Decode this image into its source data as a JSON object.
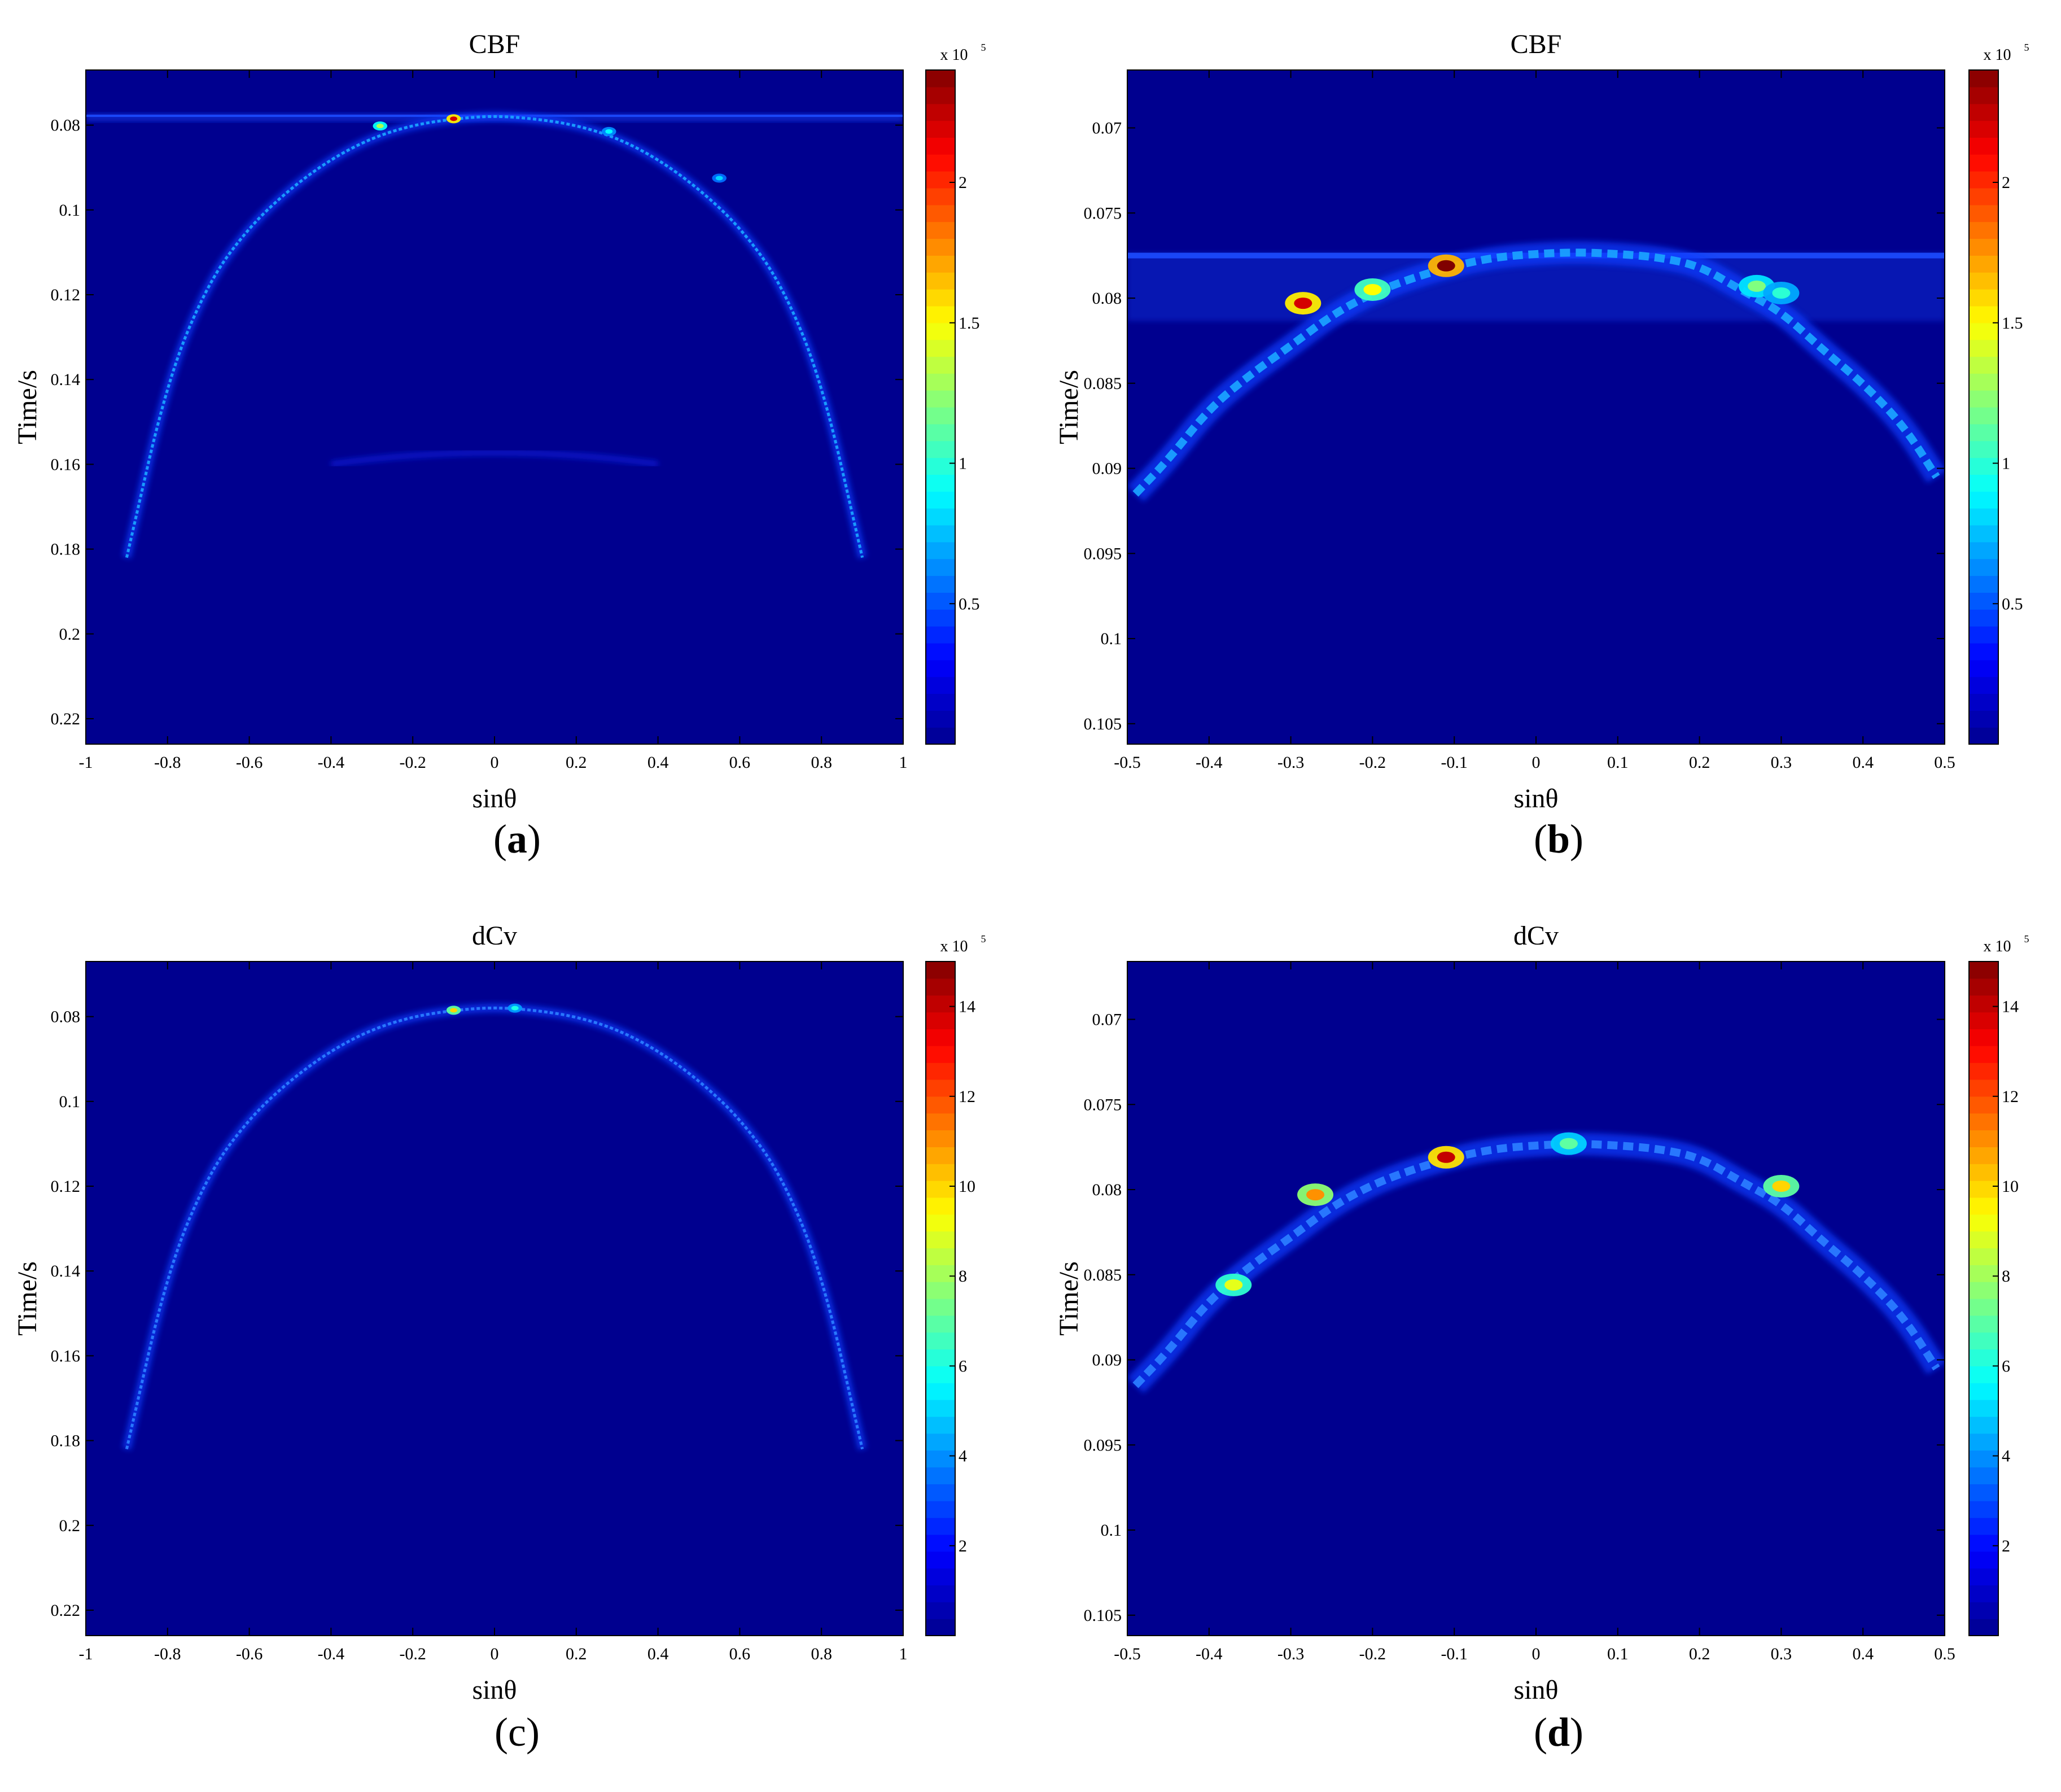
{
  "chart_data": [
    {
      "type": "heatmap",
      "panel_label": "(a)",
      "title": "CBF",
      "xlabel": "sinθ",
      "ylabel": "Time/s",
      "xlim": [
        -1,
        1
      ],
      "ylim": [
        0.067,
        0.226
      ],
      "y_reversed": true,
      "xticks": [
        -1,
        -0.8,
        -0.6,
        -0.4,
        -0.2,
        0,
        0.2,
        0.4,
        0.6,
        0.8,
        1
      ],
      "xtick_labels": [
        "-1",
        "-0.8",
        "-0.6",
        "-0.4",
        "-0.2",
        "0",
        "0.2",
        "0.4",
        "0.6",
        "0.8",
        "1"
      ],
      "yticks": [
        0.08,
        0.1,
        0.12,
        0.14,
        0.16,
        0.18,
        0.2,
        0.22
      ],
      "ytick_labels": [
        "0.08",
        "0.1",
        "0.12",
        "0.14",
        "0.16",
        "0.18",
        "0.2",
        "0.22"
      ],
      "colorbar": {
        "multiplier": "x 10",
        "exponent": "5",
        "vmax": 2.4,
        "ticks": [
          0.5,
          1,
          1.5,
          2
        ],
        "tick_labels": [
          "0.5",
          "1",
          "1.5",
          "2"
        ]
      },
      "ridge": {
        "x": [
          -0.9,
          -0.8,
          -0.7,
          -0.6,
          -0.5,
          -0.4,
          -0.3,
          -0.2,
          -0.1,
          0,
          0.1,
          0.2,
          0.3,
          0.4,
          0.5,
          0.6,
          0.7,
          0.8,
          0.9
        ],
        "y": [
          0.182,
          0.14,
          0.117,
          0.104,
          0.095,
          0.088,
          0.083,
          0.08,
          0.0785,
          0.0778,
          0.0785,
          0.08,
          0.083,
          0.088,
          0.095,
          0.104,
          0.117,
          0.14,
          0.182
        ]
      },
      "peaks": [
        {
          "x": -0.28,
          "y": 0.0802,
          "value": 1.3
        },
        {
          "x": -0.1,
          "y": 0.0785,
          "value": 2.2
        },
        {
          "x": 0.28,
          "y": 0.0815,
          "value": 0.9
        },
        {
          "x": 0.55,
          "y": 0.0925,
          "value": 0.8
        }
      ],
      "horizontal_band_time": 0.0778,
      "secondary_arc": {
        "x_range": [
          -0.4,
          0.4
        ],
        "apex_time": 0.157
      }
    },
    {
      "type": "heatmap",
      "panel_label": "(b)",
      "title": "CBF",
      "xlabel": "sinθ",
      "ylabel": "Time/s",
      "xlim": [
        -0.5,
        0.5
      ],
      "ylim": [
        0.0666,
        0.1062
      ],
      "y_reversed": true,
      "xticks": [
        -0.5,
        -0.4,
        -0.3,
        -0.2,
        -0.1,
        0,
        0.1,
        0.2,
        0.3,
        0.4,
        0.5
      ],
      "xtick_labels": [
        "-0.5",
        "-0.4",
        "-0.3",
        "-0.2",
        "-0.1",
        "0",
        "0.1",
        "0.2",
        "0.3",
        "0.4",
        "0.5"
      ],
      "yticks": [
        0.07,
        0.075,
        0.08,
        0.085,
        0.09,
        0.095,
        0.1,
        0.105
      ],
      "ytick_labels": [
        "0.07",
        "0.075",
        "0.08",
        "0.085",
        "0.09",
        "0.095",
        "0.1",
        "0.105"
      ],
      "colorbar": {
        "multiplier": "x 10",
        "exponent": "5",
        "vmax": 2.4,
        "ticks": [
          0.5,
          1,
          1.5,
          2
        ],
        "tick_labels": [
          "0.5",
          "1",
          "1.5",
          "2"
        ]
      },
      "ridge": {
        "x": [
          -0.49,
          -0.45,
          -0.4,
          -0.35,
          -0.3,
          -0.25,
          -0.2,
          -0.15,
          -0.1,
          -0.05,
          0,
          0.05,
          0.1,
          0.15,
          0.2,
          0.25,
          0.3,
          0.35,
          0.4,
          0.45,
          0.49
        ],
        "y": [
          0.0915,
          0.0895,
          0.0865,
          0.0845,
          0.0828,
          0.081,
          0.0797,
          0.0788,
          0.0781,
          0.0776,
          0.0774,
          0.0773,
          0.0774,
          0.0776,
          0.0781,
          0.0795,
          0.0808,
          0.083,
          0.085,
          0.0875,
          0.0905
        ]
      },
      "peaks": [
        {
          "x": -0.285,
          "y": 0.0803,
          "value": 2.2
        },
        {
          "x": -0.11,
          "y": 0.0781,
          "value": 2.4
        },
        {
          "x": -0.2,
          "y": 0.0795,
          "value": 1.5
        },
        {
          "x": 0.27,
          "y": 0.0793,
          "value": 1.2
        },
        {
          "x": 0.3,
          "y": 0.0797,
          "value": 1.0
        }
      ],
      "horizontal_band_time": 0.0775
    },
    {
      "type": "heatmap",
      "panel_label": "(c)",
      "title": "dCv",
      "xlabel": "sinθ",
      "ylabel": "Time/s",
      "xlim": [
        -1,
        1
      ],
      "ylim": [
        0.067,
        0.226
      ],
      "y_reversed": true,
      "xticks": [
        -1,
        -0.8,
        -0.6,
        -0.4,
        -0.2,
        0,
        0.2,
        0.4,
        0.6,
        0.8,
        1
      ],
      "xtick_labels": [
        "-1",
        "-0.8",
        "-0.6",
        "-0.4",
        "-0.2",
        "0",
        "0.2",
        "0.4",
        "0.6",
        "0.8",
        "1"
      ],
      "yticks": [
        0.08,
        0.1,
        0.12,
        0.14,
        0.16,
        0.18,
        0.2,
        0.22
      ],
      "ytick_labels": [
        "0.08",
        "0.1",
        "0.12",
        "0.14",
        "0.16",
        "0.18",
        "0.2",
        "0.22"
      ],
      "colorbar": {
        "multiplier": "x 10",
        "exponent": "5",
        "vmax": 15,
        "ticks": [
          2,
          4,
          6,
          8,
          10,
          12,
          14
        ],
        "tick_labels": [
          "2",
          "4",
          "6",
          "8",
          "10",
          "12",
          "14"
        ]
      },
      "ridge": {
        "x": [
          -0.9,
          -0.8,
          -0.7,
          -0.6,
          -0.5,
          -0.4,
          -0.3,
          -0.2,
          -0.1,
          0,
          0.1,
          0.2,
          0.3,
          0.4,
          0.5,
          0.6,
          0.7,
          0.8,
          0.9
        ],
        "y": [
          0.182,
          0.14,
          0.117,
          0.104,
          0.095,
          0.088,
          0.083,
          0.08,
          0.0785,
          0.0778,
          0.0785,
          0.08,
          0.083,
          0.088,
          0.095,
          0.104,
          0.117,
          0.14,
          0.182
        ]
      },
      "peaks": [
        {
          "x": -0.1,
          "y": 0.0785,
          "value": 10
        },
        {
          "x": 0.05,
          "y": 0.078,
          "value": 6
        }
      ]
    },
    {
      "type": "heatmap",
      "panel_label": "(d)",
      "title": "dCv",
      "xlabel": "sinθ",
      "ylabel": "Time/s",
      "xlim": [
        -0.5,
        0.5
      ],
      "ylim": [
        0.0666,
        0.1062
      ],
      "y_reversed": true,
      "xticks": [
        -0.5,
        -0.4,
        -0.3,
        -0.2,
        -0.1,
        0,
        0.1,
        0.2,
        0.3,
        0.4,
        0.5
      ],
      "xtick_labels": [
        "-0.5",
        "-0.4",
        "-0.3",
        "-0.2",
        "-0.1",
        "0",
        "0.1",
        "0.2",
        "0.3",
        "0.4",
        "0.5"
      ],
      "yticks": [
        0.07,
        0.075,
        0.08,
        0.085,
        0.09,
        0.095,
        0.1,
        0.105
      ],
      "ytick_labels": [
        "0.07",
        "0.075",
        "0.08",
        "0.085",
        "0.09",
        "0.095",
        "0.1",
        "0.105"
      ],
      "colorbar": {
        "multiplier": "x 10",
        "exponent": "5",
        "vmax": 15,
        "ticks": [
          2,
          4,
          6,
          8,
          10,
          12,
          14
        ],
        "tick_labels": [
          "2",
          "4",
          "6",
          "8",
          "10",
          "12",
          "14"
        ]
      },
      "ridge": {
        "x": [
          -0.49,
          -0.45,
          -0.4,
          -0.35,
          -0.3,
          -0.25,
          -0.2,
          -0.15,
          -0.1,
          -0.05,
          0,
          0.05,
          0.1,
          0.15,
          0.2,
          0.25,
          0.3,
          0.35,
          0.4,
          0.45,
          0.49
        ],
        "y": [
          0.0915,
          0.0895,
          0.0865,
          0.0845,
          0.0828,
          0.081,
          0.0797,
          0.0788,
          0.0781,
          0.0776,
          0.0774,
          0.0773,
          0.0774,
          0.0776,
          0.0781,
          0.0795,
          0.0808,
          0.083,
          0.085,
          0.0875,
          0.0905
        ]
      },
      "peaks": [
        {
          "x": -0.11,
          "y": 0.0781,
          "value": 14
        },
        {
          "x": -0.27,
          "y": 0.0803,
          "value": 11
        },
        {
          "x": -0.37,
          "y": 0.0856,
          "value": 9
        },
        {
          "x": 0.3,
          "y": 0.0798,
          "value": 10
        },
        {
          "x": 0.04,
          "y": 0.0773,
          "value": 7
        }
      ]
    }
  ],
  "colors": {
    "background": "#00008f",
    "jet": [
      "#00008f",
      "#0000ff",
      "#00ffff",
      "#ffff00",
      "#ff0000",
      "#800000"
    ]
  }
}
